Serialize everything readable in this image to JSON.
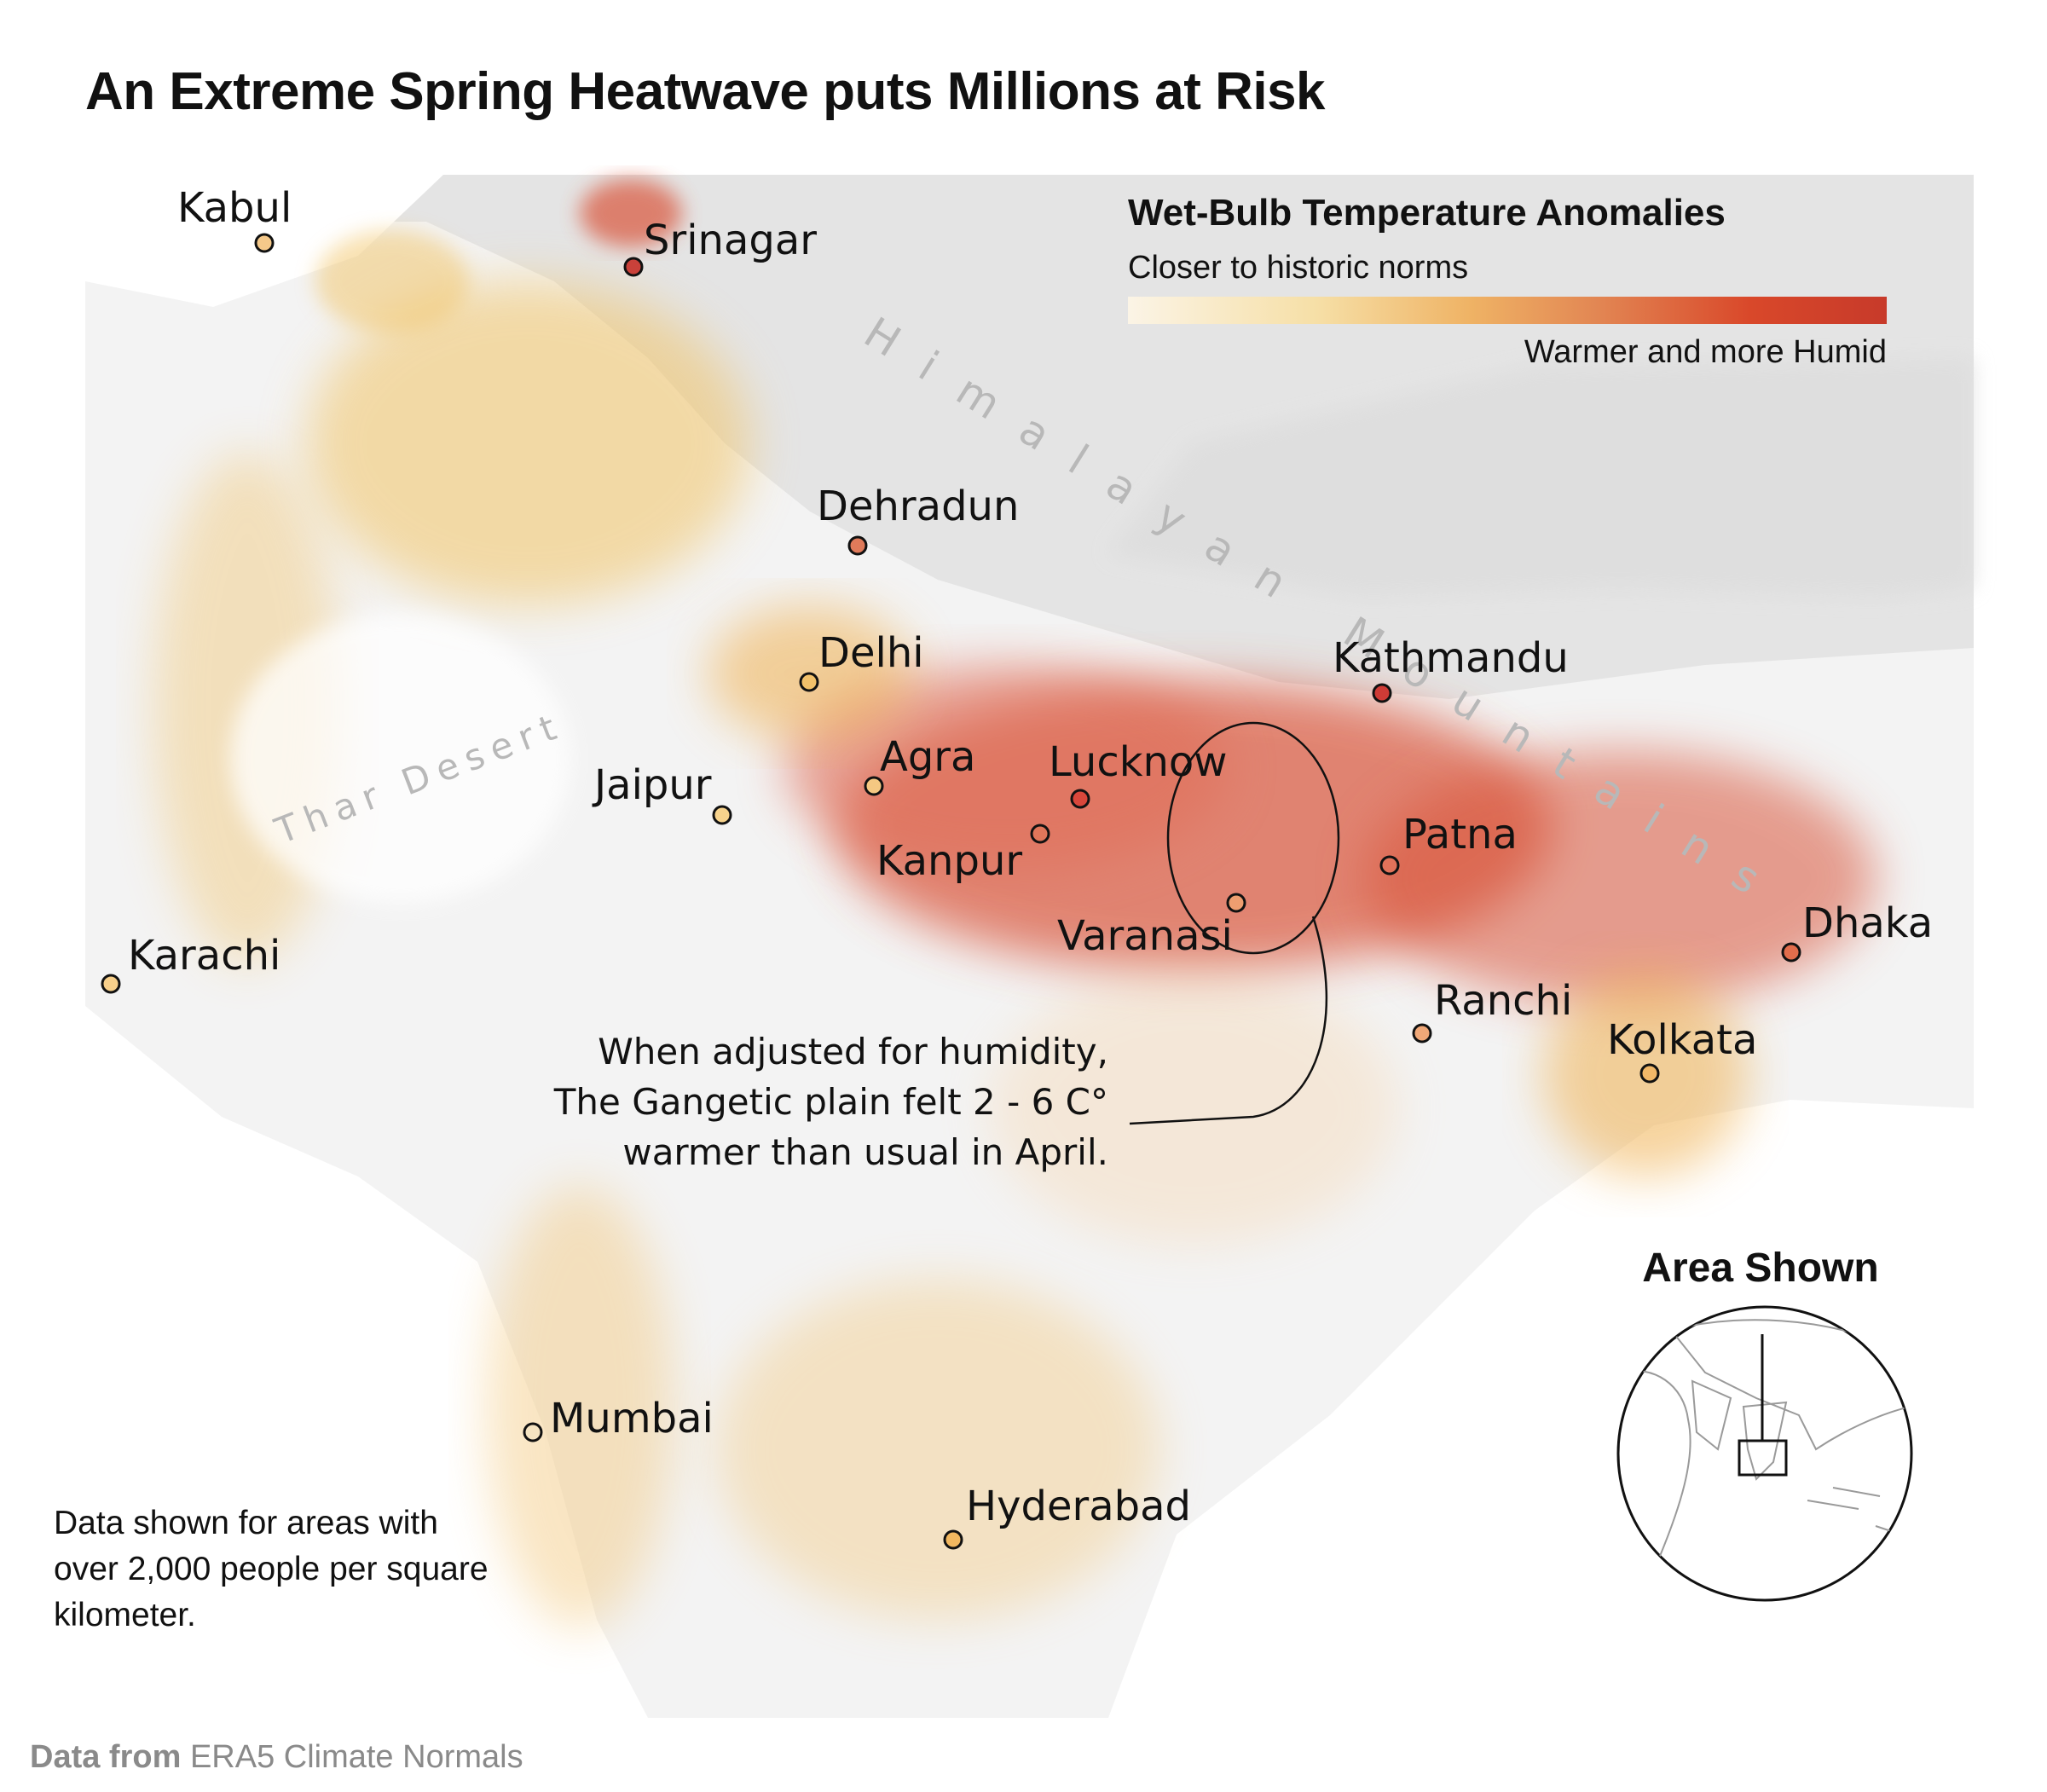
{
  "title": "An Extreme Spring Heatwave puts Millions at Risk",
  "legend": {
    "title": "Wet-Bulb Temperature Anomalies",
    "low_label": "Closer to historic norms",
    "high_label": "Warmer and more Humid",
    "colors": [
      "#fbf4e6",
      "#f6dfa6",
      "#efb365",
      "#e28653",
      "#d9482a",
      "#c73a2a"
    ]
  },
  "cities": [
    {
      "name": "Kabul",
      "level": "low",
      "color": "#f5c98a"
    },
    {
      "name": "Srinagar",
      "level": "high",
      "color": "#c9413a"
    },
    {
      "name": "Dehradun",
      "level": "mid-high",
      "color": "#e07a5a"
    },
    {
      "name": "Delhi",
      "level": "low",
      "color": "#f2c16a"
    },
    {
      "name": "Jaipur",
      "level": "low",
      "color": "#f7d38c"
    },
    {
      "name": "Agra",
      "level": "low",
      "color": "#f5c882"
    },
    {
      "name": "Lucknow",
      "level": "high",
      "color": "#d9473b"
    },
    {
      "name": "Kanpur",
      "level": "mid-high",
      "color": "#e0765a"
    },
    {
      "name": "Varanasi",
      "level": "mid",
      "color": "#ee9e70"
    },
    {
      "name": "Patna",
      "level": "mid-high",
      "color": "#e2725a"
    },
    {
      "name": "Kathmandu",
      "level": "high",
      "color": "#cf3b36"
    },
    {
      "name": "Ranchi",
      "level": "mid",
      "color": "#f0a878"
    },
    {
      "name": "Kolkata",
      "level": "low",
      "color": "#f2b868"
    },
    {
      "name": "Dhaka",
      "level": "mid-high",
      "color": "#e26d4c"
    },
    {
      "name": "Karachi",
      "level": "low",
      "color": "#f7cf8a"
    },
    {
      "name": "Mumbai",
      "level": "low",
      "color": "#f5e4c2"
    },
    {
      "name": "Hyderabad",
      "level": "low",
      "color": "#f2b860"
    }
  ],
  "terrain_labels": {
    "himalayan": "Himalayan Mountains",
    "thar": "Thar Desert"
  },
  "annotation": {
    "line1": "When adjusted for humidity,",
    "line2": "The Gangetic plain felt 2 - 6 C°",
    "line3": "warmer than usual in April."
  },
  "note": "Data shown for areas with over 2,000 people per square kilometer.",
  "inset": {
    "title": "Area Shown"
  },
  "source": {
    "prefix": "Data from",
    "text": "ERA5 Climate Normals"
  }
}
